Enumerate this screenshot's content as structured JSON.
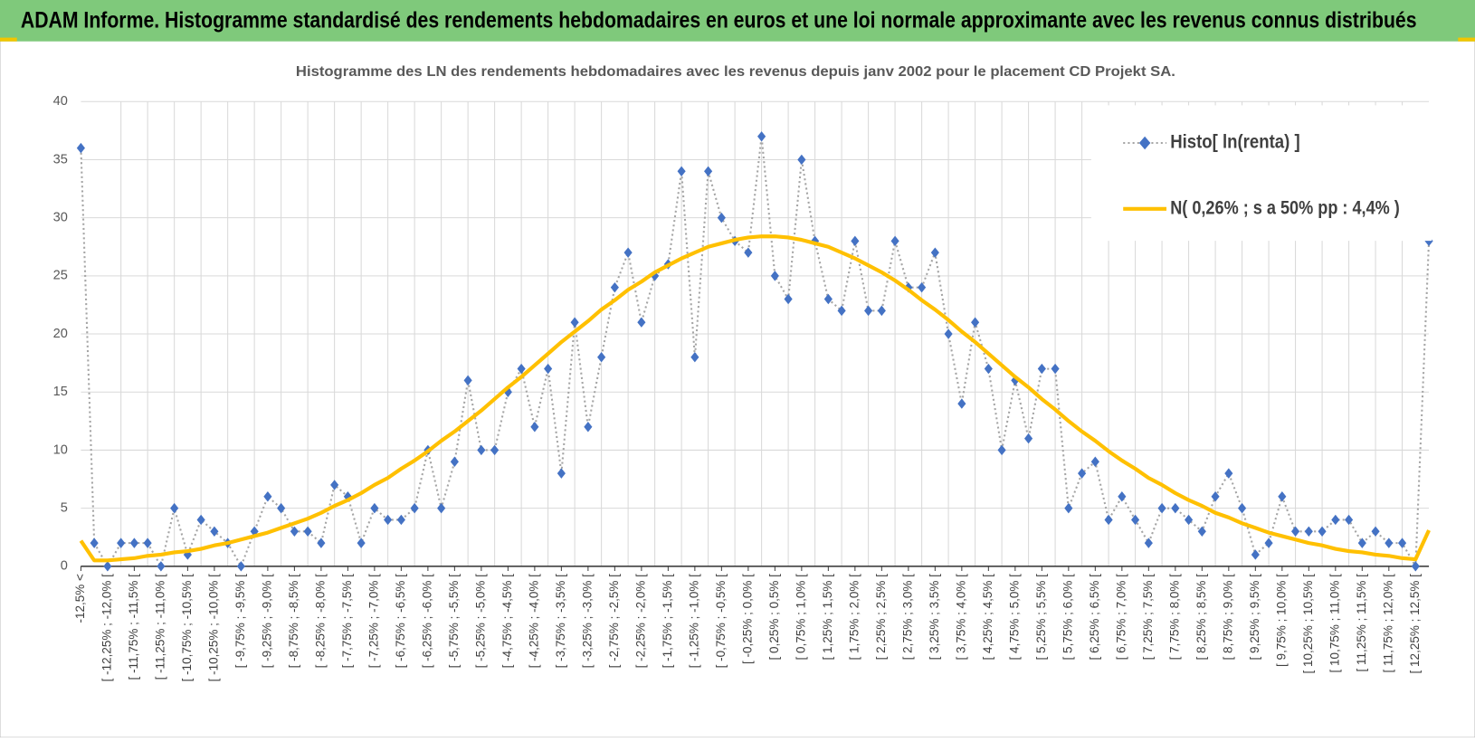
{
  "header": {
    "title": "ADAM Informe. Histogramme standardisé des rendements hebdomadaires en euros et une loi normale approximante avec les revenus connus distribués"
  },
  "chart_data": {
    "type": "line",
    "title": "Histogramme  des LN des rendements hebdomadaires avec les revenus depuis janv 2002 pour le placement CD Projekt SA.",
    "categories": [
      "-12,5% <",
      null,
      "[ -12,25% ; -12,0% [",
      null,
      "[ -11,75% ; -11,5% [",
      null,
      "[ -11,25% ; -11,0% [",
      null,
      "[ -10,75% ; -10,5% [",
      null,
      "[ -10,25% ; -10,0% [",
      null,
      "[ -9,75% ; -9,5% [",
      null,
      "[ -9,25% ; -9,0% [",
      null,
      "[ -8,75% ; -8,5% [",
      null,
      "[ -8,25% ; -8,0% [",
      null,
      "[ -7,75% ; -7,5% [",
      null,
      "[ -7,25% ; -7,0% [",
      null,
      "[ -6,75% ; -6,5% [",
      null,
      "[ -6,25% ; -6,0% [",
      null,
      "[ -5,75% ; -5,5% [",
      null,
      "[ -5,25% ; -5,0% [",
      null,
      "[ -4,75% ; -4,5% [",
      null,
      "[ -4,25% ; -4,0% [",
      null,
      "[ -3,75% ; -3,5% [",
      null,
      "[ -3,25% ; -3,0% [",
      null,
      "[ -2,75% ; -2,5% [",
      null,
      "[ -2,25% ; -2,0% [",
      null,
      "[ -1,75% ; -1,5% [",
      null,
      "[ -1,25% ; -1,0% [",
      null,
      "[ -0,75% ; -0,5% [",
      null,
      "[ -0,25% ; 0,0% [",
      null,
      "[ 0,25% ; 0,5% [",
      null,
      "[ 0,75% ; 1,0% [",
      null,
      "[ 1,25% ; 1,5% [",
      null,
      "[ 1,75% ; 2,0% [",
      null,
      "[ 2,25% ; 2,5% [",
      null,
      "[ 2,75% ; 3,0% [",
      null,
      "[ 3,25% ; 3,5% [",
      null,
      "[ 3,75% ; 4,0% [",
      null,
      "[ 4,25% ; 4,5% [",
      null,
      "[ 4,75% ; 5,0% [",
      null,
      "[ 5,25% ; 5,5% [",
      null,
      "[ 5,75% ; 6,0% [",
      null,
      "[ 6,25% ; 6,5% [",
      null,
      "[ 6,75% ; 7,0% [",
      null,
      "[ 7,25% ; 7,5% [",
      null,
      "[ 7,75% ; 8,0% [",
      null,
      "[ 8,25% ; 8,5% [",
      null,
      "[ 8,75% ; 9,0% [",
      null,
      "[ 9,25% ; 9,5% [",
      null,
      "[ 9,75% ; 10,0% [",
      null,
      "[ 10,25% ; 10,5% [",
      null,
      "[ 10,75% ; 11,0% [",
      null,
      "[ 11,25% ; 11,5% [",
      null,
      "[ 11,75% ; 12,0% [",
      null,
      "[ 12,25% ; 12,5% [",
      null
    ],
    "series": [
      {
        "name": "Histo[ ln(renta) ]",
        "color": "#4472c4",
        "line_color": "#a5a5a5",
        "line_style": "dotted",
        "marker": "diamond",
        "values": [
          36,
          2,
          0,
          2,
          2,
          2,
          0,
          5,
          1,
          4,
          3,
          2,
          0,
          3,
          6,
          5,
          3,
          3,
          2,
          7,
          6,
          2,
          5,
          4,
          4,
          5,
          10,
          5,
          9,
          16,
          10,
          10,
          15,
          17,
          12,
          17,
          8,
          21,
          12,
          18,
          24,
          27,
          21,
          25,
          26,
          34,
          18,
          34,
          30,
          28,
          27,
          37,
          25,
          23,
          35,
          28,
          23,
          22,
          28,
          22,
          22,
          28,
          24,
          24,
          27,
          20,
          14,
          21,
          17,
          10,
          16,
          11,
          17,
          17,
          5,
          8,
          9,
          4,
          6,
          4,
          2,
          5,
          5,
          4,
          3,
          6,
          8,
          5,
          1,
          2,
          6,
          3,
          3,
          3,
          4,
          4,
          2,
          3,
          2,
          2,
          0,
          28
        ]
      },
      {
        "name": "N( 0,26% ; s a 50% pp : 4,4% )",
        "color": "#ffc000",
        "line_style": "solid",
        "values": [
          2.2,
          0.5,
          0.5,
          0.6,
          0.7,
          0.9,
          1.0,
          1.2,
          1.3,
          1.5,
          1.8,
          2.0,
          2.3,
          2.6,
          2.9,
          3.3,
          3.7,
          4.1,
          4.6,
          5.2,
          5.7,
          6.3,
          7.0,
          7.6,
          8.4,
          9.1,
          9.9,
          10.8,
          11.6,
          12.5,
          13.4,
          14.4,
          15.4,
          16.3,
          17.3,
          18.3,
          19.3,
          20.2,
          21.1,
          22.1,
          22.9,
          23.8,
          24.5,
          25.3,
          25.9,
          26.5,
          27.0,
          27.5,
          27.8,
          28.1,
          28.3,
          28.4,
          28.4,
          28.3,
          28.1,
          27.8,
          27.5,
          27.0,
          26.5,
          25.9,
          25.3,
          24.6,
          23.8,
          22.9,
          22.1,
          21.2,
          20.2,
          19.3,
          18.3,
          17.3,
          16.3,
          15.4,
          14.4,
          13.5,
          12.5,
          11.6,
          10.8,
          9.9,
          9.1,
          8.4,
          7.6,
          7.0,
          6.3,
          5.7,
          5.2,
          4.6,
          4.2,
          3.7,
          3.3,
          2.9,
          2.6,
          2.3,
          2.0,
          1.8,
          1.5,
          1.3,
          1.2,
          1.0,
          0.9,
          0.7,
          0.6,
          3.1
        ]
      }
    ],
    "ylim": [
      0,
      40
    ],
    "yticks": [
      0,
      5,
      10,
      15,
      20,
      25,
      30,
      35,
      40
    ],
    "grid": true,
    "legend": "upper right"
  }
}
